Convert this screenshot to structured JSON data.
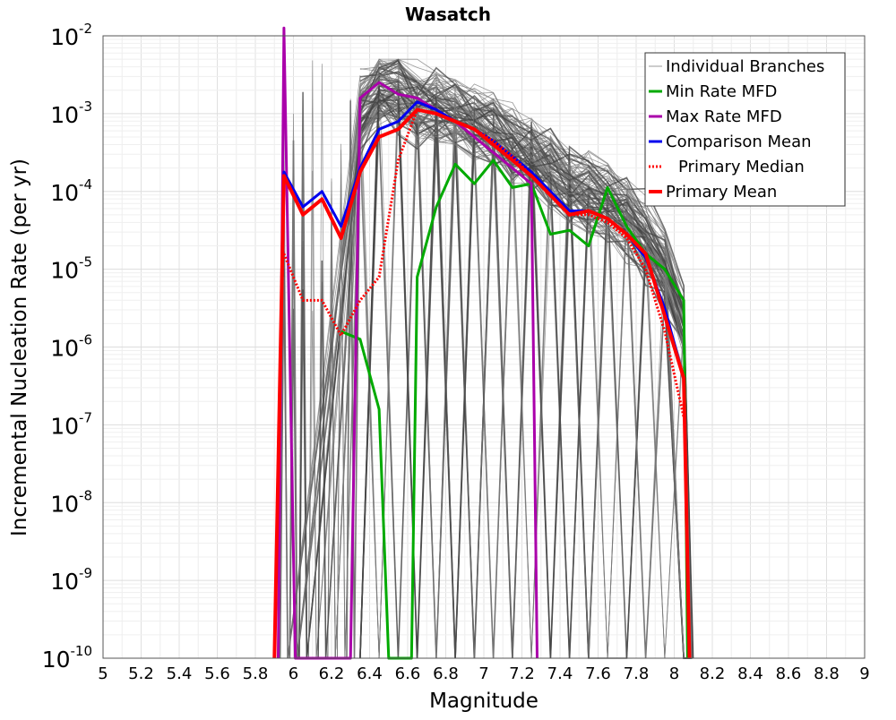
{
  "chart_data": {
    "type": "line",
    "title": "Wasatch",
    "xlabel": "Magnitude",
    "ylabel": "Incremental Nucleation Rate (per yr)",
    "xlim": [
      5,
      9
    ],
    "ylim_log10": [
      -10,
      -2
    ],
    "x_ticks": [
      "5",
      "5.2",
      "5.4",
      "5.6",
      "5.8",
      "6",
      "6.2",
      "6.4",
      "6.6",
      "6.8",
      "7",
      "7.2",
      "7.4",
      "7.6",
      "7.8",
      "8",
      "8.2",
      "8.4",
      "8.6",
      "8.8",
      "9"
    ],
    "y_ticks": [
      {
        "base": "10",
        "exp": "-10"
      },
      {
        "base": "10",
        "exp": "-9"
      },
      {
        "base": "10",
        "exp": "-8"
      },
      {
        "base": "10",
        "exp": "-7"
      },
      {
        "base": "10",
        "exp": "-6"
      },
      {
        "base": "10",
        "exp": "-5"
      },
      {
        "base": "10",
        "exp": "-4"
      },
      {
        "base": "10",
        "exp": "-3"
      },
      {
        "base": "10",
        "exp": "-2"
      }
    ],
    "grid": true,
    "legend_position": "top-right",
    "series": [
      {
        "name": "Individual Branches",
        "color": "#555555",
        "style": "thin",
        "x": [
          6.35,
          6.45,
          6.55,
          6.65,
          6.75,
          6.85,
          6.95,
          7.05,
          7.15,
          7.25,
          7.35,
          7.45,
          7.55,
          7.65,
          7.75,
          7.85,
          7.95,
          8.05
        ],
        "log10_y": [
          -3.0,
          -2.7,
          -2.7,
          -2.9,
          -2.9,
          -3.0,
          -3.1,
          -3.2,
          -3.4,
          -3.5,
          -3.7,
          -3.9,
          -4.0,
          -4.1,
          -4.3,
          -4.6,
          -5.0,
          -5.7
        ]
      },
      {
        "name": "Min Rate MFD",
        "color": "#00aa00",
        "style": "solid",
        "x": [
          6.25,
          6.35,
          6.45,
          6.5,
          6.55,
          6.62,
          6.65,
          6.75,
          6.85,
          6.95,
          7.05,
          7.15,
          7.25,
          7.35,
          7.45,
          7.55,
          7.65,
          7.75,
          7.85,
          7.95,
          8.05,
          8.07
        ],
        "log10_y": [
          -5.8,
          -5.9,
          -6.8,
          -10.0,
          -10.0,
          -10.0,
          -5.1,
          -4.2,
          -3.65,
          -3.9,
          -3.6,
          -3.95,
          -3.9,
          -4.55,
          -4.5,
          -4.7,
          -3.95,
          -4.45,
          -4.8,
          -5.0,
          -5.4,
          -10.0
        ]
      },
      {
        "name": "Max Rate MFD",
        "color": "#aa00aa",
        "style": "solid",
        "x": [
          5.92,
          5.95,
          6.01,
          6.25,
          6.3,
          6.35,
          6.45,
          6.55,
          6.65,
          6.75,
          6.85,
          6.95,
          7.05,
          7.15,
          7.25,
          7.28
        ],
        "log10_y": [
          -10.0,
          -1.9,
          -10.0,
          -10.0,
          -10.0,
          -2.8,
          -2.6,
          -2.75,
          -2.8,
          -2.95,
          -3.1,
          -3.3,
          -3.5,
          -3.7,
          -3.9,
          -10.0
        ]
      },
      {
        "name": "Comparison Mean",
        "color": "#0000ee",
        "style": "solid",
        "x": [
          5.9,
          5.95,
          6.05,
          6.15,
          6.25,
          6.35,
          6.45,
          6.55,
          6.65,
          6.75,
          6.85,
          6.95,
          7.05,
          7.15,
          7.25,
          7.35,
          7.45,
          7.55,
          7.65,
          7.75,
          7.85,
          7.95,
          8.05
        ],
        "log10_y": [
          -10.0,
          -3.75,
          -4.2,
          -4.0,
          -4.45,
          -3.7,
          -3.2,
          -3.1,
          -2.85,
          -2.95,
          -3.1,
          -3.2,
          -3.35,
          -3.55,
          -3.75,
          -4.0,
          -4.25,
          -4.25,
          -4.35,
          -4.55,
          -4.85,
          -5.5,
          -6.4
        ]
      },
      {
        "name": "Primary Median",
        "color": "#ff0000",
        "style": "dotted",
        "x": [
          5.95,
          6.05,
          6.15,
          6.25,
          6.35,
          6.45,
          6.55,
          6.65,
          6.75,
          6.85,
          6.95,
          7.05,
          7.15,
          7.25,
          7.35,
          7.45,
          7.55,
          7.65,
          7.75,
          7.85,
          7.95,
          8.05
        ],
        "log10_y": [
          -4.8,
          -5.4,
          -5.4,
          -5.85,
          -5.4,
          -5.1,
          -3.6,
          -2.95,
          -3.0,
          -3.1,
          -3.2,
          -3.35,
          -3.55,
          -3.8,
          -4.05,
          -4.3,
          -4.3,
          -4.4,
          -4.6,
          -5.0,
          -5.8,
          -6.9
        ]
      },
      {
        "name": "Primary Mean",
        "color": "#ff0000",
        "style": "solid",
        "x": [
          5.9,
          5.95,
          6.05,
          6.15,
          6.25,
          6.35,
          6.45,
          6.55,
          6.65,
          6.75,
          6.85,
          6.95,
          7.05,
          7.15,
          7.25,
          7.35,
          7.45,
          7.55,
          7.65,
          7.75,
          7.85,
          7.95,
          8.05,
          8.08
        ],
        "log10_y": [
          -10.0,
          -3.8,
          -4.3,
          -4.1,
          -4.6,
          -3.75,
          -3.3,
          -3.2,
          -2.95,
          -3.0,
          -3.1,
          -3.2,
          -3.4,
          -3.6,
          -3.8,
          -4.05,
          -4.3,
          -4.25,
          -4.35,
          -4.55,
          -4.8,
          -5.6,
          -6.4,
          -10.0
        ]
      }
    ]
  }
}
